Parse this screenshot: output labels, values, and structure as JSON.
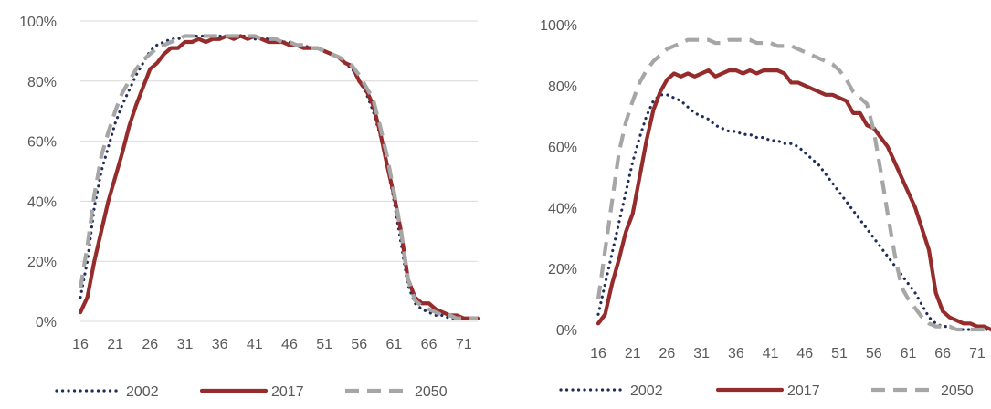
{
  "colors": {
    "s2002": "#1f2d5a",
    "s2017": "#962b2b",
    "s2050": "#a6a6a6",
    "grid": "#d9d9d9",
    "text": "#595959"
  },
  "chart_data": [
    {
      "type": "line",
      "title": "",
      "xlabel": "",
      "ylabel": "",
      "ylim": [
        0,
        100
      ],
      "xlim": [
        16,
        73
      ],
      "grid": true,
      "legend_position": "bottom",
      "ytick_labels": [
        "0%",
        "20%",
        "40%",
        "60%",
        "80%",
        "100%"
      ],
      "xtick_labels": [
        "16",
        "21",
        "26",
        "31",
        "36",
        "41",
        "46",
        "51",
        "56",
        "61",
        "66",
        "71"
      ],
      "series": [
        {
          "name": "2002",
          "style": "dotted",
          "x": [
            16,
            17,
            18,
            19,
            20,
            21,
            22,
            23,
            24,
            25,
            26,
            27,
            28,
            29,
            30,
            31,
            32,
            33,
            34,
            35,
            36,
            37,
            38,
            39,
            40,
            41,
            42,
            43,
            44,
            45,
            46,
            47,
            48,
            49,
            50,
            51,
            52,
            53,
            54,
            55,
            56,
            57,
            58,
            59,
            60,
            61,
            62,
            63,
            64,
            65,
            66,
            67,
            68,
            69,
            70,
            71,
            72,
            73
          ],
          "values": [
            8,
            20,
            38,
            50,
            58,
            66,
            72,
            77,
            82,
            86,
            90,
            92,
            93,
            94,
            94,
            95,
            95,
            95,
            95,
            95,
            95,
            95,
            95,
            95,
            95,
            94,
            94,
            94,
            93,
            93,
            93,
            92,
            92,
            91,
            91,
            90,
            89,
            88,
            86,
            84,
            80,
            76,
            70,
            62,
            52,
            40,
            26,
            12,
            6,
            4,
            3,
            2,
            2,
            1,
            1,
            1,
            1,
            1
          ]
        },
        {
          "name": "2017",
          "style": "solid",
          "x": [
            16,
            17,
            18,
            19,
            20,
            21,
            22,
            23,
            24,
            25,
            26,
            27,
            28,
            29,
            30,
            31,
            32,
            33,
            34,
            35,
            36,
            37,
            38,
            39,
            40,
            41,
            42,
            43,
            44,
            45,
            46,
            47,
            48,
            49,
            50,
            51,
            52,
            53,
            54,
            55,
            56,
            57,
            58,
            59,
            60,
            61,
            62,
            63,
            64,
            65,
            66,
            67,
            68,
            69,
            70,
            71,
            72,
            73
          ],
          "values": [
            3,
            8,
            20,
            30,
            40,
            48,
            56,
            65,
            72,
            78,
            84,
            86,
            89,
            91,
            91,
            93,
            93,
            94,
            93,
            94,
            94,
            95,
            94,
            95,
            94,
            95,
            94,
            93,
            93,
            93,
            92,
            92,
            91,
            91,
            91,
            90,
            89,
            88,
            86,
            85,
            80,
            77,
            72,
            63,
            52,
            42,
            30,
            14,
            8,
            6,
            6,
            4,
            3,
            2,
            2,
            1,
            1,
            1
          ]
        },
        {
          "name": "2050",
          "style": "dashed",
          "x": [
            16,
            17,
            18,
            19,
            20,
            21,
            22,
            23,
            24,
            25,
            26,
            27,
            28,
            29,
            30,
            31,
            32,
            33,
            34,
            35,
            36,
            37,
            38,
            39,
            40,
            41,
            42,
            43,
            44,
            45,
            46,
            47,
            48,
            49,
            50,
            51,
            52,
            53,
            54,
            55,
            56,
            57,
            58,
            59,
            60,
            61,
            62,
            63,
            64,
            65,
            66,
            67,
            68,
            69,
            70,
            71,
            72,
            73
          ],
          "values": [
            11,
            25,
            42,
            55,
            63,
            70,
            76,
            80,
            84,
            87,
            89,
            91,
            92,
            93,
            94,
            95,
            95,
            95,
            95,
            95,
            95,
            95,
            95,
            95,
            95,
            95,
            94,
            94,
            94,
            93,
            93,
            92,
            92,
            91,
            91,
            90,
            89,
            88,
            87,
            85,
            82,
            78,
            74,
            65,
            55,
            43,
            30,
            14,
            7,
            5,
            4,
            3,
            2,
            2,
            1,
            1,
            1,
            1
          ]
        }
      ]
    },
    {
      "type": "line",
      "title": "",
      "xlabel": "",
      "ylabel": "",
      "ylim": [
        0,
        100
      ],
      "xlim": [
        16,
        73
      ],
      "grid": false,
      "legend_position": "bottom",
      "ytick_labels": [
        "0%",
        "20%",
        "40%",
        "60%",
        "80%",
        "100%"
      ],
      "xtick_labels": [
        "16",
        "21",
        "26",
        "31",
        "36",
        "41",
        "46",
        "51",
        "56",
        "61",
        "66",
        "71"
      ],
      "series": [
        {
          "name": "2002",
          "style": "dotted",
          "x": [
            16,
            17,
            18,
            19,
            20,
            21,
            22,
            23,
            24,
            25,
            26,
            27,
            28,
            29,
            30,
            31,
            32,
            33,
            34,
            35,
            36,
            37,
            38,
            39,
            40,
            41,
            42,
            43,
            44,
            45,
            46,
            47,
            48,
            49,
            50,
            51,
            52,
            53,
            54,
            55,
            56,
            57,
            58,
            59,
            60,
            61,
            62,
            63,
            64,
            65,
            66,
            67,
            68,
            69,
            70,
            71,
            72,
            73
          ],
          "values": [
            5,
            15,
            25,
            35,
            45,
            55,
            63,
            70,
            75,
            77,
            77,
            76,
            75,
            73,
            71,
            70,
            69,
            67,
            66,
            65,
            65,
            64,
            64,
            63,
            63,
            62,
            62,
            61,
            61,
            60,
            58,
            56,
            54,
            51,
            48,
            45,
            42,
            39,
            36,
            33,
            30,
            27,
            24,
            21,
            18,
            15,
            12,
            8,
            4,
            2,
            1,
            1,
            0,
            0,
            0,
            0,
            0,
            0
          ]
        },
        {
          "name": "2017",
          "style": "solid",
          "x": [
            16,
            17,
            18,
            19,
            20,
            21,
            22,
            23,
            24,
            25,
            26,
            27,
            28,
            29,
            30,
            31,
            32,
            33,
            34,
            35,
            36,
            37,
            38,
            39,
            40,
            41,
            42,
            43,
            44,
            45,
            46,
            47,
            48,
            49,
            50,
            51,
            52,
            53,
            54,
            55,
            56,
            57,
            58,
            59,
            60,
            61,
            62,
            63,
            64,
            65,
            66,
            67,
            68,
            69,
            70,
            71,
            72,
            73
          ],
          "values": [
            2,
            5,
            15,
            23,
            32,
            38,
            50,
            62,
            72,
            78,
            82,
            84,
            83,
            84,
            83,
            84,
            85,
            83,
            84,
            85,
            85,
            84,
            85,
            84,
            85,
            85,
            85,
            84,
            81,
            81,
            80,
            79,
            78,
            77,
            77,
            76,
            75,
            71,
            71,
            67,
            66,
            63,
            60,
            55,
            50,
            45,
            40,
            33,
            26,
            12,
            6,
            4,
            3,
            2,
            2,
            1,
            1,
            0
          ]
        },
        {
          "name": "2050",
          "style": "dashed",
          "x": [
            16,
            17,
            18,
            19,
            20,
            21,
            22,
            23,
            24,
            25,
            26,
            27,
            28,
            29,
            30,
            31,
            32,
            33,
            34,
            35,
            36,
            37,
            38,
            39,
            40,
            41,
            42,
            43,
            44,
            45,
            46,
            47,
            48,
            49,
            50,
            51,
            52,
            53,
            54,
            55,
            56,
            57,
            58,
            59,
            60,
            61,
            62,
            63,
            64,
            65,
            66,
            67,
            68,
            69,
            70,
            71,
            72,
            73
          ],
          "values": [
            10,
            26,
            42,
            58,
            68,
            75,
            81,
            85,
            88,
            90,
            92,
            93,
            94,
            95,
            95,
            95,
            95,
            94,
            94,
            95,
            95,
            95,
            95,
            94,
            94,
            94,
            93,
            93,
            93,
            92,
            91,
            90,
            89,
            88,
            87,
            85,
            82,
            78,
            76,
            74,
            65,
            52,
            38,
            25,
            14,
            10,
            7,
            4,
            2,
            1,
            1,
            1,
            0,
            0,
            0,
            0,
            0,
            0
          ]
        }
      ]
    }
  ]
}
